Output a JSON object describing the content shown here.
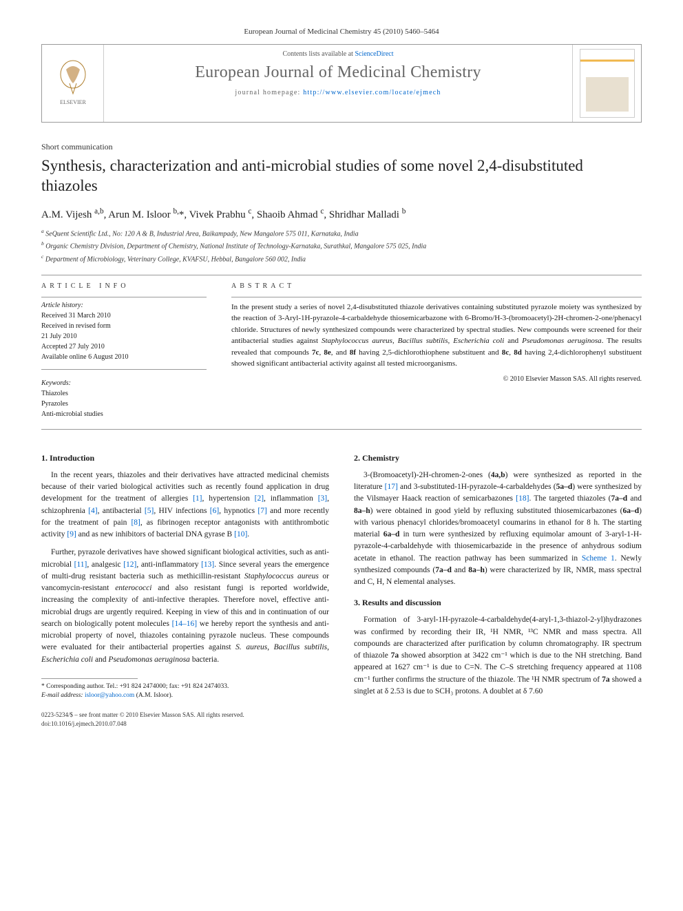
{
  "running_head": "European Journal of Medicinal Chemistry 45 (2010) 5460–5464",
  "masthead": {
    "contents_prefix": "Contents lists available at ",
    "contents_link": "ScienceDirect",
    "journal": "European Journal of Medicinal Chemistry",
    "homepage_prefix": "journal homepage: ",
    "homepage_url": "http://www.elsevier.com/locate/ejmech"
  },
  "article_type": "Short communication",
  "title": "Synthesis, characterization and anti-microbial studies of some novel 2,4-disubstituted thiazoles",
  "authors_html": "A.M. Vijesh <sup>a,b</sup>, Arun M. Isloor <sup>b,</sup>*, Vivek Prabhu <sup>c</sup>, Shaoib Ahmad <sup>c</sup>, Shridhar Malladi <sup>b</sup>",
  "affiliations": [
    "a SeQuent Scientific Ltd., No: 120 A & B, Industrial Area, Baikampady, New Mangalore 575 011, Karnataka, India",
    "b Organic Chemistry Division, Department of Chemistry, National Institute of Technology-Karnataka, Surathkal, Mangalore 575 025, India",
    "c Department of Microbiology, Veterinary College, KVAFSU, Hebbal, Bangalore 560 002, India"
  ],
  "article_info": {
    "heading": "ARTICLE INFO",
    "history_label": "Article history:",
    "history": [
      "Received 31 March 2010",
      "Received in revised form",
      "21 July 2010",
      "Accepted 27 July 2010",
      "Available online 6 August 2010"
    ],
    "keywords_label": "Keywords:",
    "keywords": [
      "Thiazoles",
      "Pyrazoles",
      "Anti-microbial studies"
    ]
  },
  "abstract": {
    "heading": "ABSTRACT",
    "text": "In the present study a series of novel 2,4-disubstituted thiazole derivatives containing substituted pyrazole moiety was synthesized by the reaction of 3-Aryl-1H-pyrazole-4-carbaldehyde thiosemicarbazone with 6-Bromo/H-3-(bromoacetyl)-2H-chromen-2-one/phenacyl chloride. Structures of newly synthesized compounds were characterized by spectral studies. New compounds were screened for their antibacterial studies against Staphylococcus aureus, Bacillus subtilis, Escherichia coli and Pseudomonas aeruginosa. The results revealed that compounds 7c, 8e, and 8f having 2,5-dichlorothiophene substituent and 8c, 8d having 2,4-dichlorophenyl substituent showed significant antibacterial activity against all tested microorganisms.",
    "copyright": "© 2010 Elsevier Masson SAS. All rights reserved."
  },
  "sections": {
    "intro_head": "1. Introduction",
    "intro_p1": "In the recent years, thiazoles and their derivatives have attracted medicinal chemists because of their varied biological activities such as recently found application in drug development for the treatment of allergies [1], hypertension [2], inflammation [3], schizophrenia [4], antibacterial [5], HIV infections [6], hypnotics [7] and more recently for the treatment of pain [8], as fibrinogen receptor antagonists with antithrombotic activity [9] and as new inhibitors of bacterial DNA gyrase B [10].",
    "intro_p2": "Further, pyrazole derivatives have showed significant biological activities, such as anti-microbial [11], analgesic [12], anti-inflammatory [13]. Since several years the emergence of multi-drug resistant bacteria such as methicillin-resistant Staphylococcus aureus or vancomycin-resistant enterococci and also resistant fungi is reported worldwide, increasing the complexity of anti-infective therapies. Therefore novel, effective anti-microbial drugs are urgently required. Keeping in view of this and in continuation of our search on biologically potent molecules [14–16] we hereby report the synthesis and anti-microbial property of novel, thiazoles containing pyrazole nucleus. These compounds were evaluated for their antibacterial properties against S. aureus, Bacillus subtilis, Escherichia coli and Pseudomonas aeruginosa bacteria.",
    "chem_head": "2. Chemistry",
    "chem_p1": "3-(Bromoacetyl)-2H-chromen-2-ones (4a,b) were synthesized as reported in the literature [17] and 3-substituted-1H-pyrazole-4-carbaldehydes (5a–d) were synthesized by the Vilsmayer Haack reaction of semicarbazones [18]. The targeted thiazoles (7a–d and 8a–h) were obtained in good yield by refluxing substituted thiosemicarbazones (6a–d) with various phenacyl chlorides/bromoacetyl coumarins in ethanol for 8 h. The starting material 6a–d in turn were synthesized by refluxing equimolar amount of 3-aryl-1-H-pyrazole-4-carbaldehyde with thiosemicarbazide in the presence of anhydrous sodium acetate in ethanol. The reaction pathway has been summarized in Scheme 1. Newly synthesized compounds (7a–d and 8a–h) were characterized by IR, NMR, mass spectral and C, H, N elemental analyses.",
    "results_head": "3. Results and discussion",
    "results_p1": "Formation of 3-aryl-1H-pyrazole-4-carbaldehyde(4-aryl-1,3-thiazol-2-yl)hydrazones was confirmed by recording their IR, ¹H NMR, ¹³C NMR and mass spectra. All compounds are characterized after purification by column chromatography. IR spectrum of thiazole 7a showed absorption at 3422 cm⁻¹ which is due to the NH stretching. Band appeared at 1627 cm⁻¹ is due to C=N. The C–S stretching frequency appeared at 1108 cm⁻¹ further confirms the structure of the thiazole. The ¹H NMR spectrum of 7a showed a singlet at δ 2.53 is due to SCH₃ protons. A doublet at δ 7.60"
  },
  "footnote": {
    "corr": "* Corresponding author. Tel.: +91 824 2474000; fax: +91 824 2474033.",
    "email_label": "E-mail address: ",
    "email": "isloor@yahoo.com",
    "email_who": " (A.M. Isloor)."
  },
  "footer": {
    "line1": "0223-5234/$ – see front matter © 2010 Elsevier Masson SAS. All rights reserved.",
    "line2": "doi:10.1016/j.ejmech.2010.07.048"
  },
  "colors": {
    "link": "#0066cc",
    "rule": "#999999",
    "journal_gray": "#666666"
  }
}
